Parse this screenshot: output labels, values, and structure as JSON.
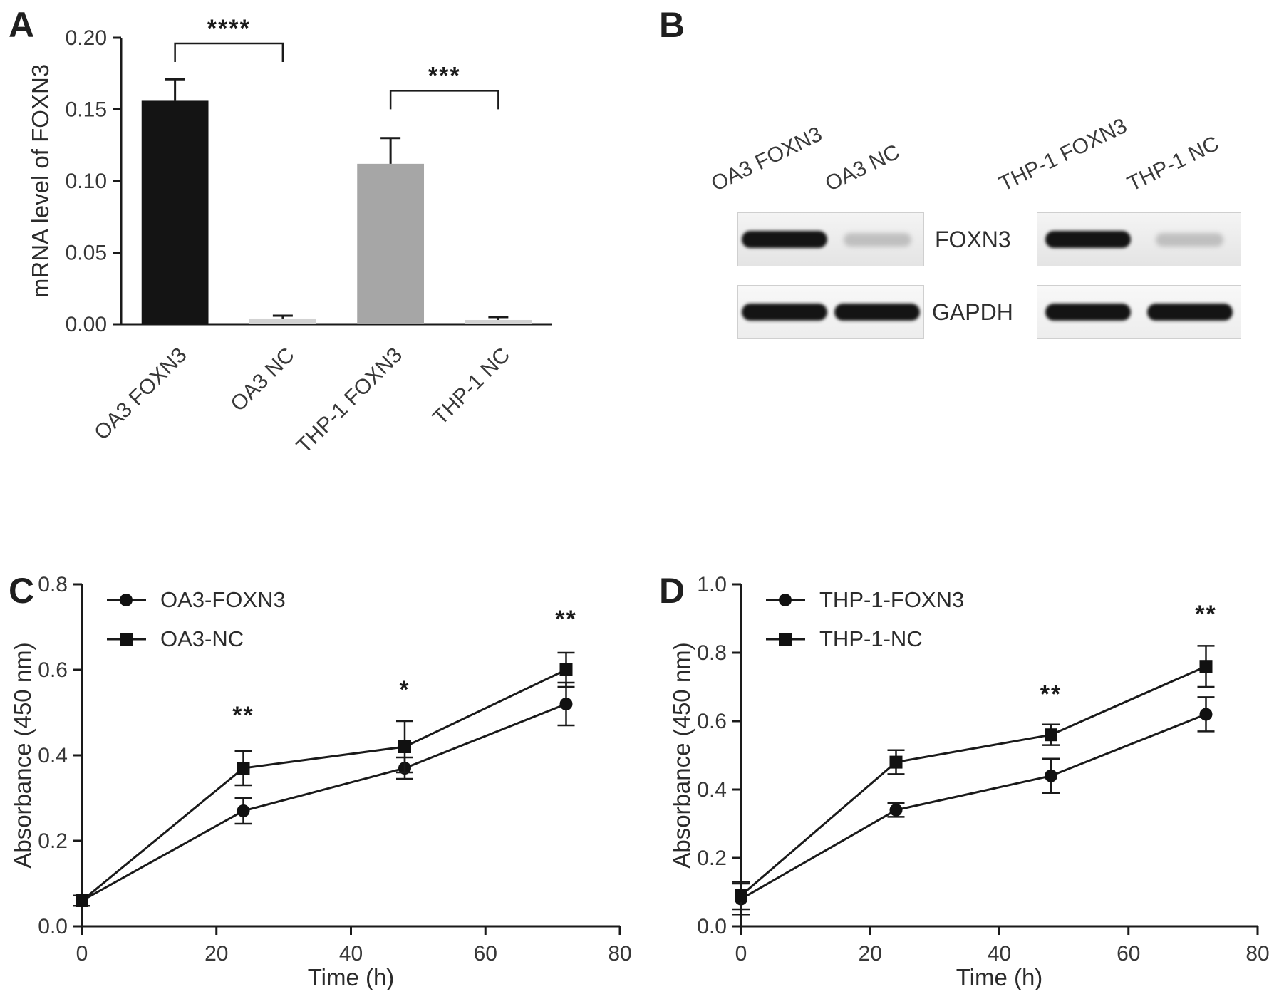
{
  "panels": {
    "a": "A",
    "b": "B",
    "c": "C",
    "d": "D"
  },
  "blot": {
    "rows": [
      "FOXN3",
      "GAPDH"
    ],
    "groups": [
      {
        "lanes": [
          "OA3 FOXN3",
          "OA3 NC"
        ],
        "band_rows": [
          [
            "strong",
            "faint"
          ],
          [
            "strong",
            "strong"
          ]
        ]
      },
      {
        "lanes": [
          "THP-1 FOXN3",
          "THP-1 NC"
        ],
        "band_rows": [
          [
            "strong",
            "faint"
          ],
          [
            "strong",
            "strong"
          ]
        ]
      }
    ]
  },
  "chart_data": [
    {
      "id": "chartA",
      "type": "bar",
      "title": "",
      "xlabel": "",
      "ylabel": "mRNA level of FOXN3",
      "categories": [
        "OA3 FOXN3",
        "OA3 NC",
        "THP-1 FOXN3",
        "THP-1 NC"
      ],
      "values": [
        0.156,
        0.004,
        0.112,
        0.003
      ],
      "errors": [
        0.015,
        0.002,
        0.018,
        0.002
      ],
      "bar_colors": [
        "#141414",
        "#d2d2d2",
        "#a6a6a6",
        "#d2d2d2"
      ],
      "ylim": [
        0,
        0.2
      ],
      "yticks": [
        0,
        0.05,
        0.1,
        0.15,
        0.2
      ],
      "ytick_labels": [
        "0.00",
        "0.05",
        "0.10",
        "0.15",
        "0.20"
      ],
      "significance": [
        {
          "from": 0,
          "to": 1,
          "y": 0.196,
          "label": "****"
        },
        {
          "from": 2,
          "to": 3,
          "y": 0.163,
          "label": "***"
        }
      ],
      "grid": false
    },
    {
      "id": "chartC",
      "type": "line",
      "xlabel": "Time (h)",
      "ylabel": "Absorbance (450 nm)",
      "x": [
        0,
        24,
        48,
        72
      ],
      "series": [
        {
          "name": "OA3-FOXN3",
          "marker": "circle",
          "values": [
            0.06,
            0.27,
            0.37,
            0.52
          ],
          "errors": [
            0.012,
            0.03,
            0.025,
            0.05
          ]
        },
        {
          "name": "OA3-NC",
          "marker": "square",
          "values": [
            0.06,
            0.37,
            0.42,
            0.6
          ],
          "errors": [
            0.012,
            0.04,
            0.06,
            0.04
          ]
        }
      ],
      "xlim": [
        0,
        80
      ],
      "ylim": [
        0,
        0.8
      ],
      "xticks": [
        0,
        20,
        40,
        60,
        80
      ],
      "yticks": [
        0,
        0.2,
        0.4,
        0.6,
        0.8
      ],
      "ytick_labels": [
        "0.0",
        "0.2",
        "0.4",
        "0.6",
        "0.8"
      ],
      "annotations": [
        {
          "x": 24,
          "y": 0.475,
          "label": "**"
        },
        {
          "x": 48,
          "y": 0.535,
          "label": "*"
        },
        {
          "x": 72,
          "y": 0.7,
          "label": "**"
        }
      ],
      "legend_position": "top-left",
      "grid": false
    },
    {
      "id": "chartD",
      "type": "line",
      "xlabel": "Time (h)",
      "ylabel": "Absorbance (450 nm)",
      "x": [
        0,
        24,
        48,
        72
      ],
      "series": [
        {
          "name": "THP-1-FOXN3",
          "marker": "circle",
          "values": [
            0.08,
            0.34,
            0.44,
            0.62
          ],
          "errors": [
            0.045,
            0.02,
            0.05,
            0.05
          ]
        },
        {
          "name": "THP-1-NC",
          "marker": "square",
          "values": [
            0.09,
            0.48,
            0.56,
            0.76
          ],
          "errors": [
            0.04,
            0.035,
            0.03,
            0.06
          ]
        }
      ],
      "xlim": [
        0,
        80
      ],
      "ylim": [
        0,
        1.0
      ],
      "xticks": [
        0,
        20,
        40,
        60,
        80
      ],
      "yticks": [
        0,
        0.2,
        0.4,
        0.6,
        0.8,
        1.0
      ],
      "ytick_labels": [
        "0.0",
        "0.2",
        "0.4",
        "0.6",
        "0.8",
        "1.0"
      ],
      "annotations": [
        {
          "x": 48,
          "y": 0.655,
          "label": "**"
        },
        {
          "x": 72,
          "y": 0.89,
          "label": "**"
        }
      ],
      "legend_position": "top-left",
      "grid": false
    }
  ]
}
